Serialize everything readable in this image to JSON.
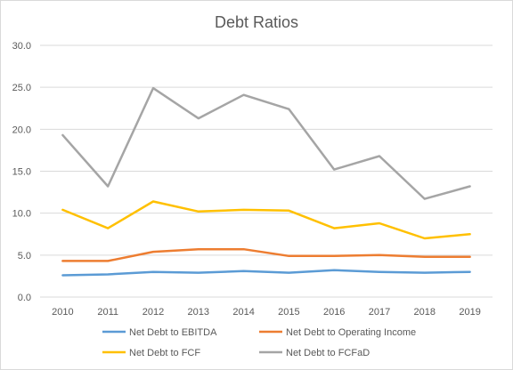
{
  "chart_data": {
    "type": "line",
    "title": "Debt Ratios",
    "xlabel": "",
    "ylabel": "",
    "x": [
      "2010",
      "2011",
      "2012",
      "2013",
      "2014",
      "2015",
      "2016",
      "2017",
      "2018",
      "2019"
    ],
    "ylim": [
      0,
      30
    ],
    "yticks": [
      "0.0",
      "5.0",
      "10.0",
      "15.0",
      "20.0",
      "25.0",
      "30.0"
    ],
    "grid": true,
    "legend_position": "bottom",
    "series": [
      {
        "name": "Net Debt to EBITDA",
        "color": "#5b9bd5",
        "values": [
          2.6,
          2.7,
          3.0,
          2.9,
          3.1,
          2.9,
          3.2,
          3.0,
          2.9,
          3.0
        ]
      },
      {
        "name": "Net Debt to Operating Income",
        "color": "#ed7d31",
        "values": [
          4.3,
          4.3,
          5.4,
          5.7,
          5.7,
          4.9,
          4.9,
          5.0,
          4.8,
          4.8
        ]
      },
      {
        "name": "Net Debt to FCF",
        "color": "#ffc000",
        "values": [
          10.4,
          8.2,
          11.4,
          10.2,
          10.4,
          10.3,
          8.2,
          8.8,
          7.0,
          7.5
        ]
      },
      {
        "name": "Net Debt to FCFaD",
        "color": "#a5a5a5",
        "values": [
          19.3,
          13.2,
          24.9,
          21.3,
          24.1,
          22.4,
          15.2,
          16.8,
          11.7,
          13.2
        ]
      }
    ]
  }
}
